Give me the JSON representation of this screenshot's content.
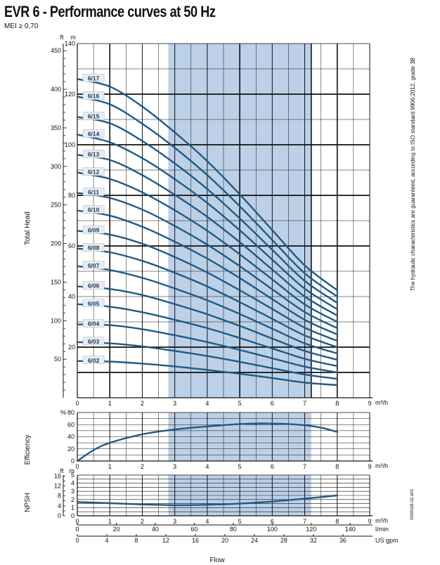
{
  "title": "EVR 6 - Performance curves at 50 Hz",
  "subtitle": "MEI ≥ 0,70",
  "side_note": "The hydraulic characteristics are guaranteed, according to ISO standard 9906:2012, grade 3B",
  "code": "0000028-02.e03",
  "colors": {
    "curve": "#1f5a85",
    "band": "#bcd1e8",
    "grid": "#111111",
    "label_bg": "#e9edf2"
  },
  "chart_data": [
    {
      "type": "line",
      "panel": "head",
      "ylabel": "Total Head",
      "xlabel": "m³/h",
      "xlim": [
        0,
        9
      ],
      "ylim": [
        0,
        140
      ],
      "left_axis_unit": "ft",
      "left_axis_ticks": [
        "50",
        "100",
        "150",
        "200",
        "250",
        "300",
        "350",
        "400",
        "450"
      ],
      "right_axis_unit": "m",
      "right_axis_ticks": [
        "20",
        "40",
        "60",
        "80",
        "100",
        "120",
        "140"
      ],
      "x_ticks": [
        "0",
        "1",
        "2",
        "3",
        "4",
        "5",
        "6",
        "7",
        "8",
        "9"
      ],
      "recommended_range": [
        2.8,
        7.2
      ],
      "series": [
        {
          "name": "6/02",
          "x": [
            0,
            1,
            2,
            3,
            4,
            5,
            6,
            7,
            8
          ],
          "values": [
            14.5,
            14.3,
            13.5,
            12.4,
            11.0,
            9.5,
            7.8,
            6.0,
            5.0
          ]
        },
        {
          "name": "6/03",
          "x": [
            0,
            1,
            2,
            3,
            4,
            5,
            6,
            7,
            8
          ],
          "values": [
            22,
            21.5,
            20.3,
            18.5,
            16.5,
            14.2,
            11.7,
            9.2,
            7.5
          ]
        },
        {
          "name": "6/04",
          "x": [
            0,
            1,
            2,
            3,
            4,
            5,
            6,
            7,
            8
          ],
          "values": [
            29,
            28.7,
            27.1,
            24.7,
            22.0,
            18.9,
            15.6,
            12.3,
            10.0
          ]
        },
        {
          "name": "6/05",
          "x": [
            0,
            1,
            2,
            3,
            4,
            5,
            6,
            7,
            8
          ],
          "values": [
            37,
            36,
            33.8,
            30.8,
            27.5,
            23.6,
            19.5,
            15.4,
            12.5
          ]
        },
        {
          "name": "6/06",
          "x": [
            0,
            1,
            2,
            3,
            4,
            5,
            6,
            7,
            8
          ],
          "values": [
            44,
            43,
            40.6,
            37,
            33,
            28.4,
            23.4,
            18.5,
            15.0
          ]
        },
        {
          "name": "6/07",
          "x": [
            0,
            1,
            2,
            3,
            4,
            5,
            6,
            7,
            8
          ],
          "values": [
            52,
            50.5,
            47.4,
            43.2,
            38.5,
            33.1,
            27.3,
            21.5,
            17.5
          ]
        },
        {
          "name": "6/08",
          "x": [
            0,
            1,
            2,
            3,
            4,
            5,
            6,
            7,
            8
          ],
          "values": [
            59,
            57.5,
            54.1,
            49.4,
            44.0,
            37.8,
            31.2,
            24.6,
            20.0
          ]
        },
        {
          "name": "6/09",
          "x": [
            0,
            1,
            2,
            3,
            4,
            5,
            6,
            7,
            8
          ],
          "values": [
            66,
            64.5,
            60.9,
            55.6,
            49.5,
            42.5,
            35.1,
            27.7,
            22.5
          ]
        },
        {
          "name": "6/10",
          "x": [
            0,
            1,
            2,
            3,
            4,
            5,
            6,
            7,
            8
          ],
          "values": [
            74,
            72,
            67.6,
            61.7,
            55.0,
            47.3,
            39.0,
            30.8,
            25.0
          ]
        },
        {
          "name": "6/11",
          "x": [
            0,
            1,
            2,
            3,
            4,
            5,
            6,
            7,
            8
          ],
          "values": [
            81,
            79,
            74.4,
            67.9,
            60.5,
            52.0,
            42.9,
            33.9,
            27.5
          ]
        },
        {
          "name": "6/12",
          "x": [
            0,
            1,
            2,
            3,
            4,
            5,
            6,
            7,
            8
          ],
          "values": [
            89,
            86.5,
            81.2,
            74.1,
            66.0,
            56.7,
            46.8,
            36.9,
            30.0
          ]
        },
        {
          "name": "6/13",
          "x": [
            0,
            1,
            2,
            3,
            4,
            5,
            6,
            7,
            8
          ],
          "values": [
            96,
            94,
            88.0,
            80.2,
            71.5,
            61.5,
            50.7,
            40.0,
            32.5
          ]
        },
        {
          "name": "6/14",
          "x": [
            0,
            1,
            2,
            3,
            4,
            5,
            6,
            7,
            8
          ],
          "values": [
            104,
            101,
            94.7,
            86.4,
            77.0,
            66.2,
            54.6,
            43.1,
            35.0
          ]
        },
        {
          "name": "6/15",
          "x": [
            0,
            1,
            2,
            3,
            4,
            5,
            6,
            7,
            8
          ],
          "values": [
            111,
            108.5,
            101.5,
            92.6,
            82.5,
            70.9,
            58.5,
            46.2,
            37.5
          ]
        },
        {
          "name": "6/16",
          "x": [
            0,
            1,
            2,
            3,
            4,
            5,
            6,
            7,
            8
          ],
          "values": [
            119,
            116,
            108.3,
            98.8,
            88.0,
            75.7,
            62.4,
            49.2,
            40.0
          ]
        },
        {
          "name": "6/17",
          "x": [
            0,
            1,
            2,
            3,
            4,
            5,
            6,
            7,
            8
          ],
          "values": [
            126,
            123,
            115.1,
            104.9,
            93.5,
            80.4,
            66.3,
            52.3,
            42.5
          ]
        }
      ]
    },
    {
      "type": "line",
      "panel": "efficiency",
      "ylabel": "Efficiency",
      "xlabel": "m³/h",
      "xlim": [
        0,
        9
      ],
      "ylim": [
        0,
        80
      ],
      "left_axis_unit": "%",
      "left_axis_ticks": [
        "0",
        "20",
        "40",
        "60",
        "80"
      ],
      "x_ticks": [
        "0",
        "1",
        "2",
        "3",
        "4",
        "5",
        "6",
        "7",
        "8",
        "9"
      ],
      "recommended_range": [
        2.8,
        7.2
      ],
      "series": [
        {
          "x": [
            0,
            0.5,
            1,
            2,
            3,
            4,
            5,
            5.7,
            6.5,
            7,
            7.5,
            8
          ],
          "values": [
            0,
            18,
            30,
            44,
            52,
            57,
            61,
            62,
            61,
            59,
            55,
            48
          ]
        }
      ]
    },
    {
      "type": "line",
      "panel": "npsh",
      "ylabel": "NPSH",
      "xlim": [
        0,
        9
      ],
      "ylim": [
        0,
        5
      ],
      "left_axis_unit": "ft",
      "left_axis_ticks": [
        "0",
        "4",
        "8",
        "12",
        "16"
      ],
      "right_axis_unit": "m",
      "right_axis_ticks": [
        "0",
        "1",
        "2",
        "3",
        "4",
        "5"
      ],
      "x_ticks": [
        "0",
        "1",
        "2",
        "3",
        "4",
        "5",
        "6",
        "7",
        "8",
        "9"
      ],
      "x_unit_1": "m³/h",
      "x_axis_2_unit": "l/min",
      "x_axis_2_ticks": [
        "0",
        "20",
        "40",
        "60",
        "80",
        "100",
        "120",
        "140"
      ],
      "x_axis_3_unit": "US gpm",
      "x_axis_3_ticks": [
        "0",
        "4",
        "8",
        "12",
        "16",
        "20",
        "24",
        "28",
        "32",
        "36"
      ],
      "recommended_range": [
        2.8,
        7.2
      ],
      "series": [
        {
          "x": [
            0,
            1,
            2,
            3,
            4,
            5,
            6,
            7,
            8
          ],
          "values": [
            1.7,
            1.55,
            1.4,
            1.3,
            1.35,
            1.5,
            1.75,
            2.1,
            2.5
          ]
        }
      ]
    }
  ],
  "xaxis_title": "Flow"
}
